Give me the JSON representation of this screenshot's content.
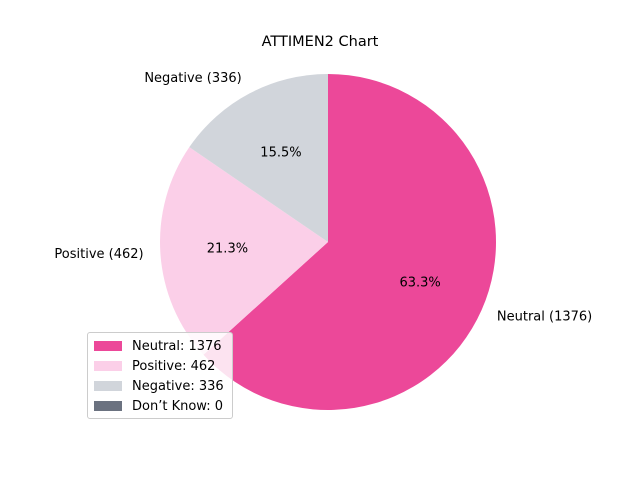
{
  "chart_data": {
    "type": "pie",
    "title": "ATTIMEN2 Chart",
    "categories": [
      "Neutral",
      "Positive",
      "Negative",
      "Don’t Know"
    ],
    "values": [
      1376,
      462,
      336,
      0
    ],
    "colors": [
      "#ec4899",
      "#fbcfe8",
      "#d1d5db",
      "#6b7280"
    ],
    "outer_labels": [
      "Neutral (1376)",
      "Positive (462)",
      "Negative (336)",
      ""
    ],
    "percent_labels": [
      "63.3%",
      "21.3%",
      "15.5%",
      ""
    ],
    "legend": {
      "placement": "lower-left",
      "entries": [
        "Neutral: 1376",
        "Positive: 462",
        "Negative: 336",
        "Don’t Know: 0"
      ]
    },
    "start_angle": "top",
    "direction": "clockwise"
  }
}
